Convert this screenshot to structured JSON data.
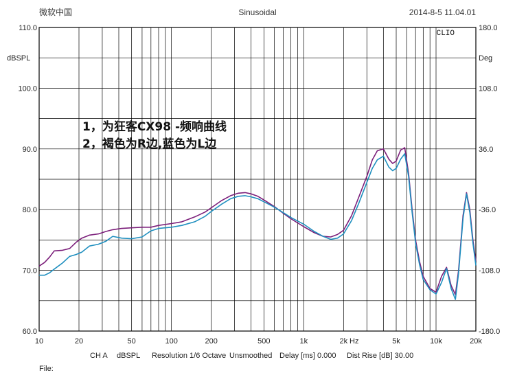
{
  "header": {
    "left": "微软中国",
    "center": "Sinusoidal",
    "right": "2014-8-5 11.04.01",
    "badge": "CLIO"
  },
  "footer": {
    "ch": "CH A",
    "unit": "dBSPL",
    "resolution": "Resolution 1/6 Octave",
    "smooth": "Unsmoothed",
    "delay": "Delay [ms] 0.000",
    "dist": "Dist Rise [dB] 30.00",
    "file": "File:"
  },
  "annotations": [
    "1，为狂客CX98 -频响曲线",
    "2，褐色为R边,蓝色为L边"
  ],
  "chart_data": {
    "type": "line",
    "xscale": "log",
    "xlim": [
      10,
      20000
    ],
    "ylim": [
      60,
      110
    ],
    "y2lim": [
      -180,
      180
    ],
    "ylabel": "dBSPL",
    "y2label": "Deg",
    "xunit": "Hz",
    "x_tick_labels": [
      "10",
      "20",
      "50",
      "100",
      "200",
      "500",
      "1k",
      "2k",
      "5k",
      "10k",
      "20k"
    ],
    "y_tick_labels": [
      "60.0",
      "70.0",
      "80.0",
      "90.0",
      "100.0",
      "110.0"
    ],
    "y2_tick_labels": [
      "-180.0",
      "-108.0",
      "-36.0",
      "36.0",
      "108.0",
      "180.0"
    ],
    "grid": true,
    "colors": {
      "R": "#7b1e7a",
      "L": "#1f8fbf"
    },
    "series": [
      {
        "id": "R",
        "color": "#7b1e7a",
        "x": [
          10,
          11,
          12,
          13,
          15,
          17,
          19,
          21,
          24,
          28,
          32,
          36,
          42,
          50,
          60,
          70,
          80,
          100,
          120,
          150,
          180,
          200,
          240,
          280,
          320,
          360,
          400,
          450,
          500,
          600,
          700,
          800,
          1000,
          1200,
          1400,
          1600,
          1800,
          2000,
          2300,
          2600,
          3000,
          3300,
          3600,
          4000,
          4400,
          4700,
          5000,
          5400,
          5800,
          6200,
          6600,
          7000,
          7500,
          8000,
          9000,
          10000,
          11000,
          12000,
          13000,
          14000,
          14800,
          16000,
          17000,
          18000,
          19000,
          20000
        ],
        "y": [
          70.7,
          71.3,
          72.2,
          73.2,
          73.3,
          73.6,
          74.6,
          75.3,
          75.8,
          76.0,
          76.4,
          76.7,
          76.9,
          77.0,
          77.1,
          77.1,
          77.4,
          77.7,
          78.0,
          78.8,
          79.6,
          80.3,
          81.5,
          82.3,
          82.7,
          82.8,
          82.6,
          82.2,
          81.6,
          80.5,
          79.4,
          78.5,
          77.2,
          76.2,
          75.6,
          75.5,
          75.9,
          76.6,
          79.0,
          82.0,
          85.5,
          88.2,
          89.7,
          90.0,
          88.3,
          87.6,
          88.0,
          89.8,
          90.2,
          86.0,
          80.0,
          75.0,
          71.5,
          69.0,
          67.0,
          66.4,
          69.0,
          70.5,
          67.5,
          66.0,
          70.0,
          79.0,
          82.8,
          80.0,
          75.0,
          71.5
        ]
      },
      {
        "id": "L",
        "color": "#1f8fbf",
        "x": [
          10,
          11,
          12,
          13,
          15,
          17,
          19,
          21,
          24,
          28,
          32,
          36,
          42,
          50,
          60,
          70,
          80,
          100,
          120,
          150,
          180,
          200,
          240,
          280,
          320,
          360,
          400,
          450,
          500,
          600,
          700,
          800,
          1000,
          1200,
          1400,
          1600,
          1800,
          2000,
          2300,
          2600,
          3000,
          3300,
          3600,
          4000,
          4400,
          4700,
          5000,
          5400,
          5800,
          6200,
          6600,
          7000,
          7500,
          8000,
          9000,
          10000,
          11000,
          12000,
          13000,
          14000,
          14800,
          16000,
          17000,
          18000,
          19000,
          20000
        ],
        "y": [
          69.2,
          69.2,
          69.6,
          70.2,
          71.2,
          72.3,
          72.6,
          73.0,
          74.0,
          74.3,
          74.8,
          75.6,
          75.3,
          75.2,
          75.5,
          76.5,
          76.9,
          77.1,
          77.4,
          78.0,
          78.9,
          79.7,
          80.9,
          81.8,
          82.2,
          82.3,
          82.1,
          81.8,
          81.3,
          80.4,
          79.5,
          78.7,
          77.6,
          76.4,
          75.6,
          75.1,
          75.3,
          76.0,
          78.2,
          81.0,
          84.5,
          86.8,
          88.2,
          88.8,
          87.0,
          86.4,
          86.8,
          88.3,
          89.2,
          85.5,
          79.5,
          74.5,
          71.0,
          68.5,
          66.8,
          66.1,
          68.0,
          70.3,
          67.0,
          65.2,
          69.5,
          78.5,
          82.6,
          79.5,
          74.5,
          70.8
        ]
      }
    ]
  }
}
